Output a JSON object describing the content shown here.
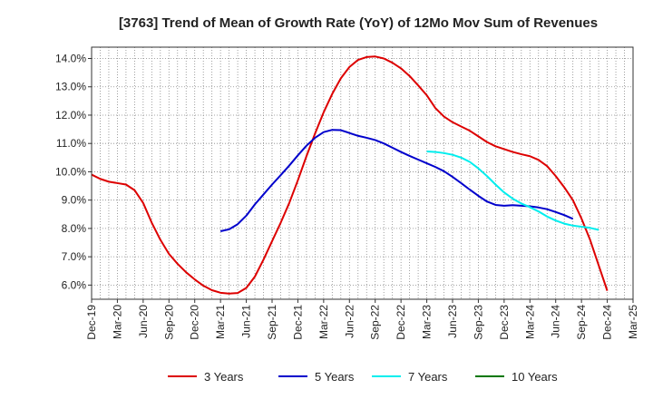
{
  "chart_data": {
    "type": "line",
    "title": "[3763]  Trend of Mean of Growth Rate (YoY) of 12Mo Mov Sum of Revenues",
    "xlabel": "",
    "ylabel": "",
    "ylim": [
      5.5,
      14.4
    ],
    "y_ticks": [
      6.0,
      7.0,
      8.0,
      9.0,
      10.0,
      11.0,
      12.0,
      13.0,
      14.0
    ],
    "y_tick_labels": [
      "6.0%",
      "7.0%",
      "8.0%",
      "9.0%",
      "10.0%",
      "11.0%",
      "12.0%",
      "13.0%",
      "14.0%"
    ],
    "x_tick_labels": [
      "Dec-19",
      "Mar-20",
      "Jun-20",
      "Sep-20",
      "Dec-20",
      "Mar-21",
      "Jun-21",
      "Sep-21",
      "Dec-21",
      "Mar-22",
      "Jun-22",
      "Sep-22",
      "Dec-22",
      "Mar-23",
      "Jun-23",
      "Sep-23",
      "Dec-23",
      "Mar-24",
      "Jun-24",
      "Sep-24",
      "Dec-24",
      "Mar-25"
    ],
    "x_months_start": "Dec-19",
    "x_months_total": 63,
    "grid": true,
    "legend_position": "bottom",
    "series": [
      {
        "name": "3 Years",
        "color": "#dd0000",
        "start_month_index": 0,
        "values": [
          9.9,
          9.75,
          9.65,
          9.6,
          9.55,
          9.35,
          8.9,
          8.2,
          7.6,
          7.1,
          6.75,
          6.45,
          6.2,
          5.98,
          5.82,
          5.73,
          5.7,
          5.72,
          5.9,
          6.3,
          6.9,
          7.55,
          8.2,
          8.9,
          9.7,
          10.55,
          11.35,
          12.1,
          12.75,
          13.3,
          13.7,
          13.95,
          14.05,
          14.07,
          14.0,
          13.85,
          13.65,
          13.38,
          13.05,
          12.7,
          12.25,
          11.95,
          11.75,
          11.6,
          11.45,
          11.25,
          11.05,
          10.9,
          10.8,
          10.7,
          10.62,
          10.55,
          10.42,
          10.2,
          9.85,
          9.45,
          9.0,
          8.35,
          7.6,
          6.7,
          5.8
        ]
      },
      {
        "name": "5 Years",
        "color": "#0000cc",
        "start_month_index": 15,
        "values": [
          7.9,
          7.97,
          8.15,
          8.45,
          8.85,
          9.2,
          9.55,
          9.88,
          10.22,
          10.58,
          10.92,
          11.2,
          11.4,
          11.48,
          11.47,
          11.37,
          11.27,
          11.2,
          11.12,
          11.0,
          10.85,
          10.7,
          10.56,
          10.43,
          10.3,
          10.17,
          10.02,
          9.82,
          9.6,
          9.37,
          9.15,
          8.95,
          8.83,
          8.8,
          8.82,
          8.8,
          8.78,
          8.74,
          8.68,
          8.58,
          8.47,
          8.34
        ]
      },
      {
        "name": "7 Years",
        "color": "#00eeee",
        "start_month_index": 39,
        "values": [
          10.72,
          10.7,
          10.66,
          10.6,
          10.5,
          10.35,
          10.12,
          9.85,
          9.55,
          9.27,
          9.05,
          8.88,
          8.75,
          8.6,
          8.42,
          8.28,
          8.17,
          8.1,
          8.06,
          8.02,
          7.95
        ]
      },
      {
        "name": "10 Years",
        "color": "#007700",
        "start_month_index": 0,
        "values": []
      }
    ]
  }
}
